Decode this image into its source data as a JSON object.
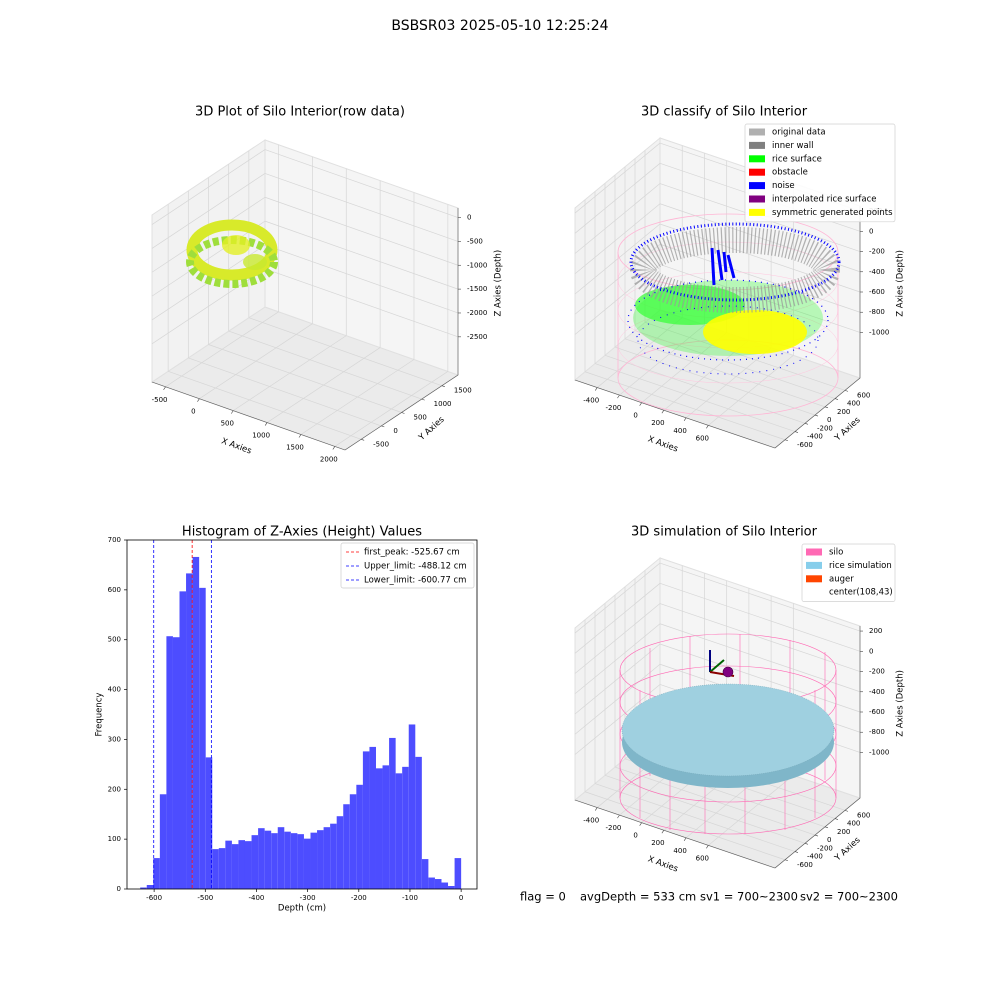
{
  "title": "BSBSR03 2025-05-10 12:25:24",
  "chart_data": [
    {
      "type": "scatter3d",
      "title": "3D Plot of Silo Interior(row data)",
      "xlabel": "X Axies",
      "ylabel": "Y Axies",
      "zlabel": "Z Axies (Depth)",
      "xlim": [
        -700,
        2150
      ],
      "ylim": [
        -900,
        1900
      ],
      "zlim": [
        -3300,
        200
      ],
      "xticks": [
        -500,
        0,
        500,
        1000,
        1500,
        2000
      ],
      "yticks": [
        -500,
        0,
        500,
        1000,
        1500
      ],
      "zticks": [
        0,
        -500,
        -1000,
        -1500,
        -2000,
        -2500
      ]
    },
    {
      "type": "scatter3d",
      "title": "3D classify of Silo Interior",
      "xlabel": "X Axies",
      "ylabel": "Y Axies",
      "zlabel": "Z Axies (Depth)",
      "xlim": [
        -600,
        1200
      ],
      "ylim": [
        -800,
        900
      ],
      "zlim": [
        -1450,
        250
      ],
      "xticks": [
        -400,
        -200,
        0,
        200,
        400,
        600
      ],
      "yticks": [
        -600,
        -400,
        -200,
        0,
        200,
        400,
        600
      ],
      "zticks": [
        200,
        0,
        -200,
        -400,
        -600,
        -800,
        -1000
      ],
      "series": [
        {
          "name": "original data",
          "color": "#b0b0b0"
        },
        {
          "name": "inner wall",
          "color": "#808080"
        },
        {
          "name": "rice surface",
          "color": "#00ff00"
        },
        {
          "name": "obstacle",
          "color": "#ff0000"
        },
        {
          "name": "noise",
          "color": "#0000ff"
        },
        {
          "name": "interpolated rice surface",
          "color": "#800080"
        },
        {
          "name": "symmetric generated points",
          "color": "#ffff00"
        }
      ]
    },
    {
      "type": "histogram",
      "title": "Histogram of Z-Axies (Height) Values",
      "xlabel": "Depth (cm)",
      "ylabel": "Frequency",
      "color": "#4d4dff",
      "xlim": [
        -653,
        31
      ],
      "ylim": [
        0,
        700
      ],
      "xticks": [
        -600,
        -500,
        -400,
        -300,
        -200,
        -100,
        0
      ],
      "yticks": [
        0,
        100,
        200,
        300,
        400,
        500,
        600,
        700
      ],
      "bins": [
        -640,
        -627.2,
        -614.4,
        -601.6,
        -588.8,
        -576,
        -563.2,
        -550.4,
        -537.6,
        -524.8,
        -512,
        -499.2,
        -486.4,
        -473.6,
        -460.8,
        -448,
        -435.2,
        -422.4,
        -409.6,
        -396.8,
        -384,
        -371.2,
        -358.4,
        -345.6,
        -332.8,
        -320,
        -307.2,
        -294.4,
        -281.6,
        -268.8,
        -256,
        -243.2,
        -230.4,
        -217.6,
        -204.8,
        -192,
        -179.2,
        -166.4,
        -153.6,
        -140.8,
        -128,
        -115.2,
        -102.4,
        -89.6,
        -76.8,
        -64,
        -51.2,
        -38.4,
        -25.6,
        -12.8,
        0
      ],
      "values": [
        0,
        3,
        8,
        62,
        190,
        507,
        505,
        597,
        633,
        666,
        604,
        264,
        80,
        82,
        97,
        90,
        98,
        96,
        108,
        122,
        117,
        112,
        124,
        115,
        112,
        110,
        101,
        113,
        118,
        124,
        131,
        146,
        170,
        190,
        209,
        276,
        285,
        242,
        248,
        303,
        232,
        245,
        330,
        265,
        60,
        23,
        20,
        13,
        6,
        62
      ],
      "lines": [
        {
          "label": "first_peak: -525.67 cm",
          "value": -525.67,
          "color": "#ff0000"
        },
        {
          "label": "Upper_limit: -488.12 cm",
          "value": -488.12,
          "color": "#0000ff"
        },
        {
          "label": "Lower_limit: -600.77 cm",
          "value": -600.77,
          "color": "#0000ff"
        }
      ]
    },
    {
      "type": "scatter3d",
      "title": "3D simulation of Silo Interior",
      "xlabel": "X Axies",
      "ylabel": "Y Axies",
      "zlabel": "Z Axies (Depth)",
      "xlim": [
        -600,
        1200
      ],
      "ylim": [
        -800,
        900
      ],
      "zlim": [
        -1450,
        250
      ],
      "xticks": [
        -400,
        -200,
        0,
        200,
        400,
        600
      ],
      "yticks": [
        -600,
        -400,
        -200,
        0,
        200,
        400,
        600
      ],
      "zticks": [
        200,
        0,
        -200,
        -400,
        -600,
        -800,
        -1000
      ],
      "series": [
        {
          "name": "silo",
          "color": "#ff69b4"
        },
        {
          "name": "rice simulation",
          "color": "#87ceeb"
        },
        {
          "name": "auger",
          "color": "#ff4500"
        },
        {
          "name": "center(108,43)",
          "color": "#ffffff"
        }
      ]
    }
  ],
  "footer": [
    "flag = 0",
    "avgDepth = 533 cm",
    "sv1 = 700~2300",
    "sv2 = 700~2300"
  ]
}
